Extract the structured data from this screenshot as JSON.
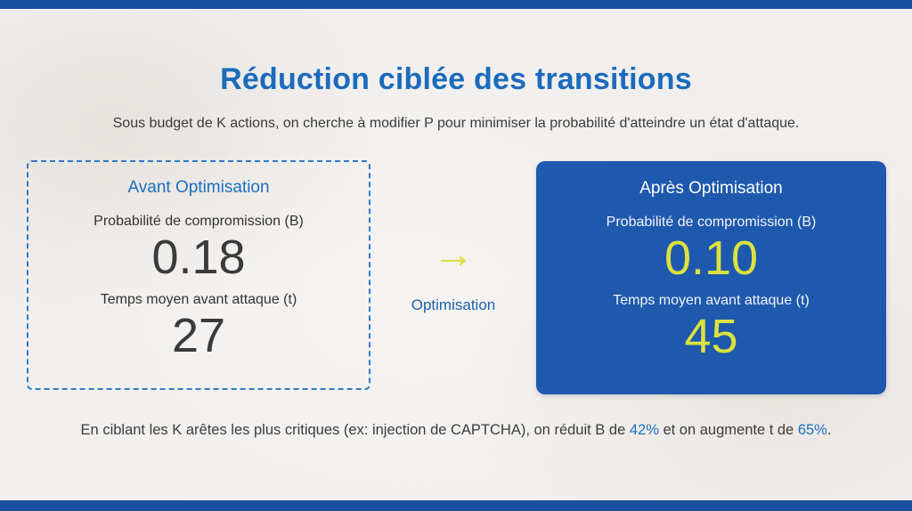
{
  "page": {
    "title": "Réduction ciblée des transitions",
    "subtitle": "Sous budget de K actions, on cherche à modifier P pour minimiser la probabilité d'atteindre un état d'attaque."
  },
  "before_card": {
    "title": "Avant Optimisation",
    "metric1_label": "Probabilité de compromission (B)",
    "metric1_value": "0.18",
    "metric2_label": "Temps moyen avant attaque (t)",
    "metric2_value": "27"
  },
  "transition": {
    "arrow_glyph": "→",
    "label": "Optimisation"
  },
  "after_card": {
    "title": "Après Optimisation",
    "metric1_label": "Probabilité de compromission (B)",
    "metric1_value": "0.10",
    "metric2_label": "Temps moyen avant attaque (t)",
    "metric2_value": "45"
  },
  "footer": {
    "text_before": "En ciblant les K arêtes les plus critiques (ex: injection de CAPTCHA), on réduit B de ",
    "highlight1": "42%",
    "text_middle": " et on augmente t de ",
    "highlight2": "65%",
    "text_after": "."
  },
  "colors": {
    "accent_bar_blue": "#1b4f9f",
    "title_blue": "#1c6bbd",
    "after_card_blue": "#1e59ad",
    "accent_yellow": "#d9e03c",
    "dashed_border_blue": "#2f7cc4",
    "background": "#f1efed"
  }
}
